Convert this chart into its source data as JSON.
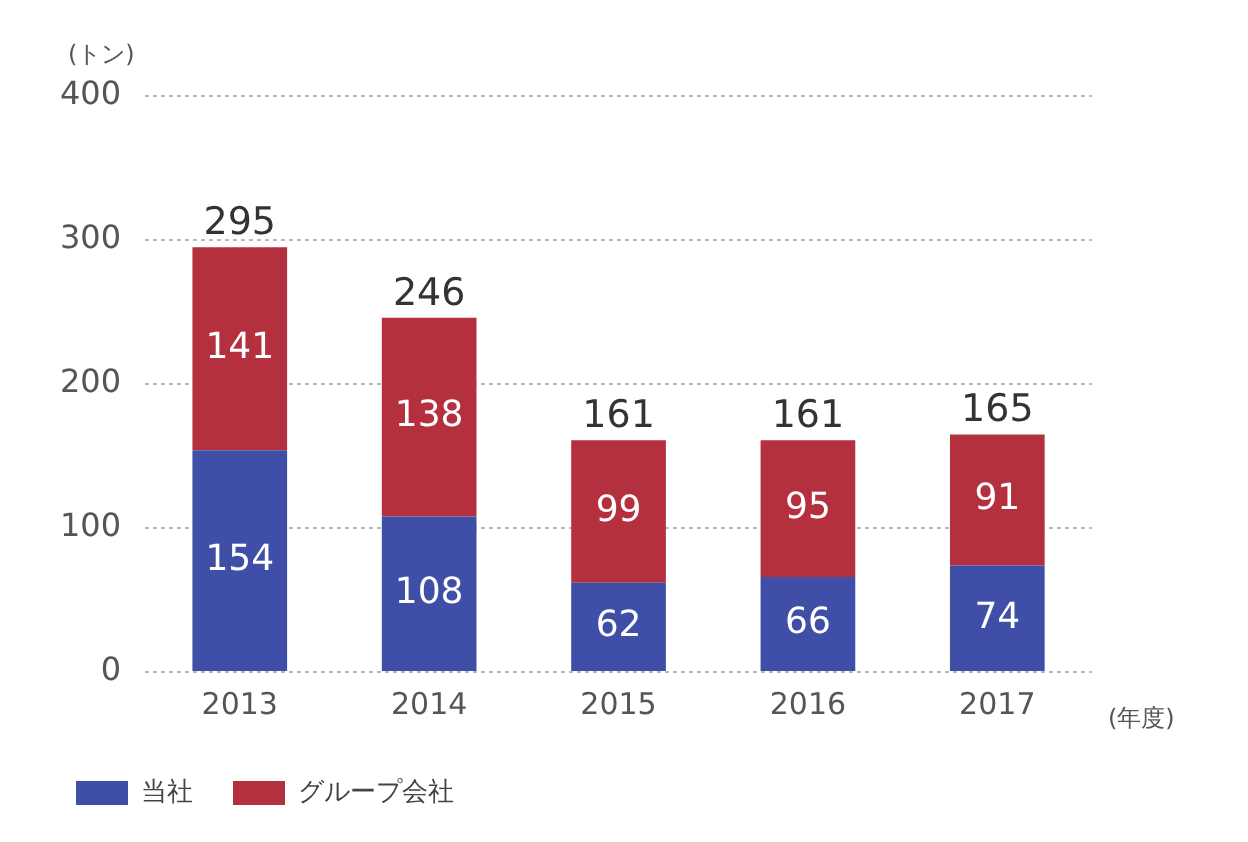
{
  "chart_data": {
    "type": "bar",
    "stacked": true,
    "ylabel": "(トン)",
    "xlabel": "(年度)",
    "categories": [
      "2013",
      "2014",
      "2015",
      "2016",
      "2017"
    ],
    "series": [
      {
        "name": "当社",
        "color": "#3f4fa8",
        "values": [
          154,
          108,
          62,
          66,
          74
        ]
      },
      {
        "name": "グループ会社",
        "color": "#b5303f",
        "values": [
          141,
          138,
          99,
          95,
          91
        ]
      }
    ],
    "ylim": [
      0,
      400
    ],
    "yticks": [
      0,
      100,
      200,
      300,
      400
    ],
    "grid": "y",
    "legend": "bottom left",
    "data_labels": true,
    "totals": [
      "295",
      "246",
      "161",
      "161",
      "165"
    ]
  }
}
